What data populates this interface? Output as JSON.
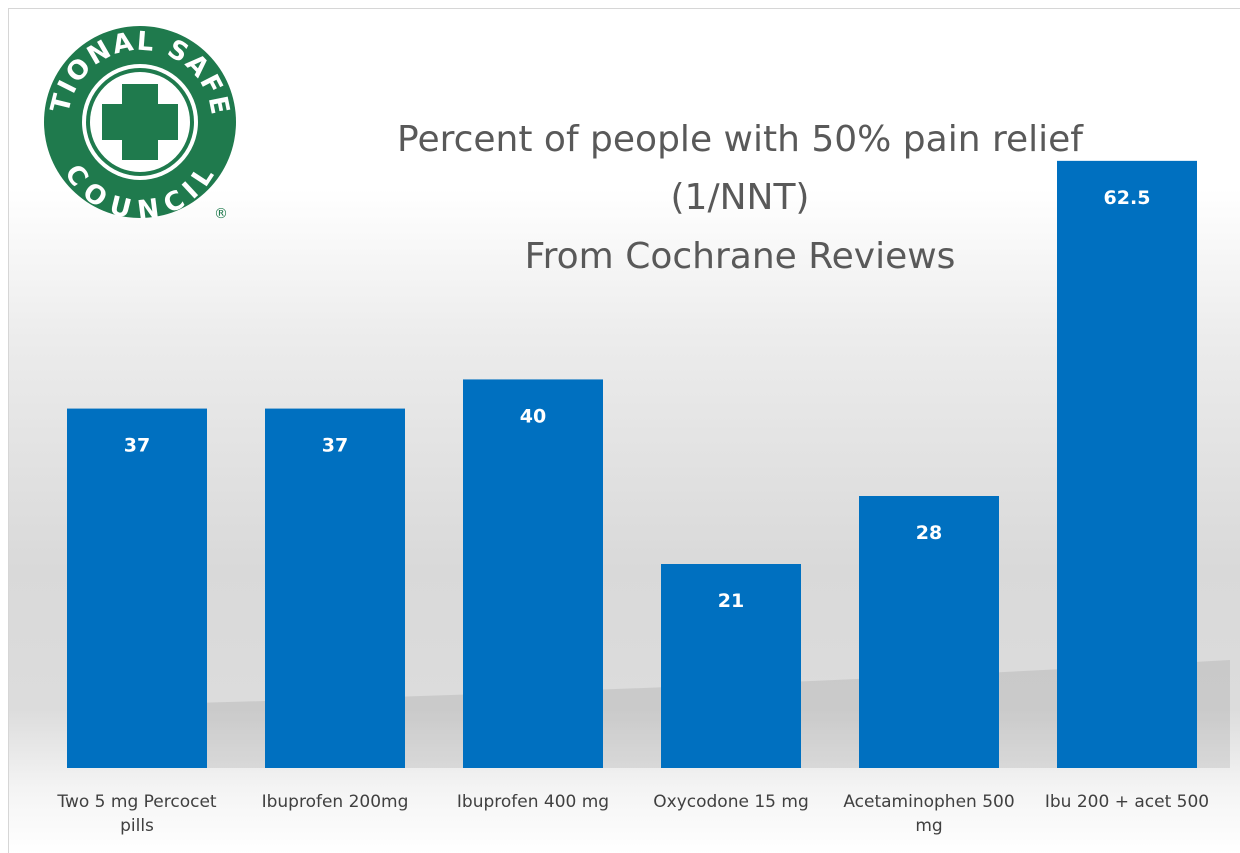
{
  "logo": {
    "top_text": "NATIONAL SAFETY",
    "bottom_text": "COUNCIL",
    "mark": "®",
    "colors": {
      "green": "#1f7a4d",
      "white": "#ffffff"
    }
  },
  "chart_data": {
    "type": "bar",
    "title_lines": [
      "Percent of people with 50% pain relief",
      "(1/NNT)",
      "From Cochrane Reviews"
    ],
    "categories": [
      [
        "Two 5 mg Percocet",
        "pills"
      ],
      [
        "Ibuprofen 200mg"
      ],
      [
        "Ibuprofen 400 mg"
      ],
      [
        "Oxycodone 15 mg"
      ],
      [
        "Acetaminophen 500",
        "mg"
      ],
      [
        "Ibu 200 + acet 500"
      ]
    ],
    "values": [
      37,
      37,
      40,
      21,
      28,
      62.5
    ],
    "data_labels": [
      "37",
      "37",
      "40",
      "21",
      "28",
      "62.5"
    ],
    "ylim": [
      0,
      70
    ],
    "grid": false,
    "legend": "none",
    "bar_color": "#0070c0",
    "label_color": "#ffffff"
  }
}
